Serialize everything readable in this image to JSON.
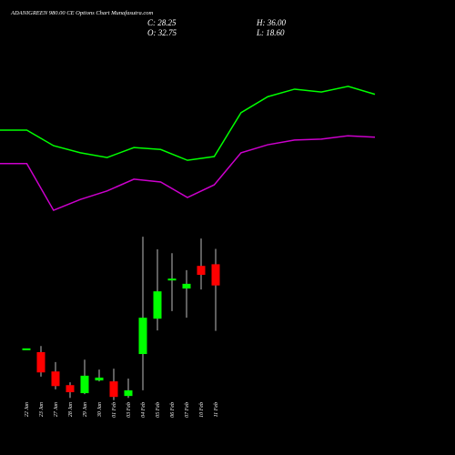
{
  "header": {
    "title": "ADANIGREEN 980.00 CE Options Chart Munafasutra.com",
    "close": "C: 28.25",
    "open": "O: 32.75",
    "high": "H: 36.00",
    "low": "L: 18.60"
  },
  "chart_data": [
    {
      "type": "candlestick",
      "categories": [
        "22 Jan",
        "23 Jan",
        "27 Jan",
        "28 Jan",
        "29 Jan",
        "30 Jan",
        "01 Feb",
        "03 Feb",
        "04 Feb",
        "05 Feb",
        "06 Feb",
        "07 Feb",
        "10 Feb",
        "11 Feb"
      ],
      "open": [
        14.9,
        14.1,
        10.0,
        7.1,
        5.4,
        8.1,
        7.9,
        4.8,
        13.7,
        21.2,
        29.5,
        27.6,
        32.4,
        32.75
      ],
      "close": [
        14.9,
        9.8,
        6.9,
        5.6,
        9.1,
        8.7,
        4.6,
        6.0,
        21.4,
        27.0,
        29.7,
        28.6,
        30.5,
        28.25
      ],
      "high": [
        14.9,
        15.4,
        12.0,
        7.7,
        12.5,
        10.4,
        10.6,
        8.5,
        38.6,
        35.9,
        35.1,
        31.5,
        38.2,
        36.0
      ],
      "low": [
        14.9,
        8.9,
        6.2,
        4.4,
        5.2,
        7.9,
        3.9,
        4.4,
        6.0,
        18.7,
        22.8,
        21.4,
        27.4,
        18.6
      ],
      "up_color": "#00ff00",
      "down_color": "#ff0000",
      "ylim": [
        0,
        78
      ]
    },
    {
      "type": "line",
      "categories": [
        null,
        null,
        null,
        null,
        null,
        null,
        null,
        null,
        null,
        null,
        null,
        null,
        null,
        null,
        null
      ],
      "series": [
        {
          "color": "#00ff00",
          "values": [
            61.2,
            61.2,
            57.9,
            56.4,
            55.4,
            57.5,
            57.1,
            54.8,
            55.6,
            64.9,
            68.3,
            69.9,
            69.3,
            70.5,
            68.8
          ]
        },
        {
          "color": "#cc00cc",
          "values": [
            54.1,
            54.1,
            44.2,
            46.5,
            48.3,
            50.8,
            50.2,
            46.9,
            49.6,
            56.4,
            58.1,
            59.1,
            59.3,
            60.0,
            59.7
          ]
        }
      ],
      "ylim": [
        0,
        78
      ]
    }
  ]
}
